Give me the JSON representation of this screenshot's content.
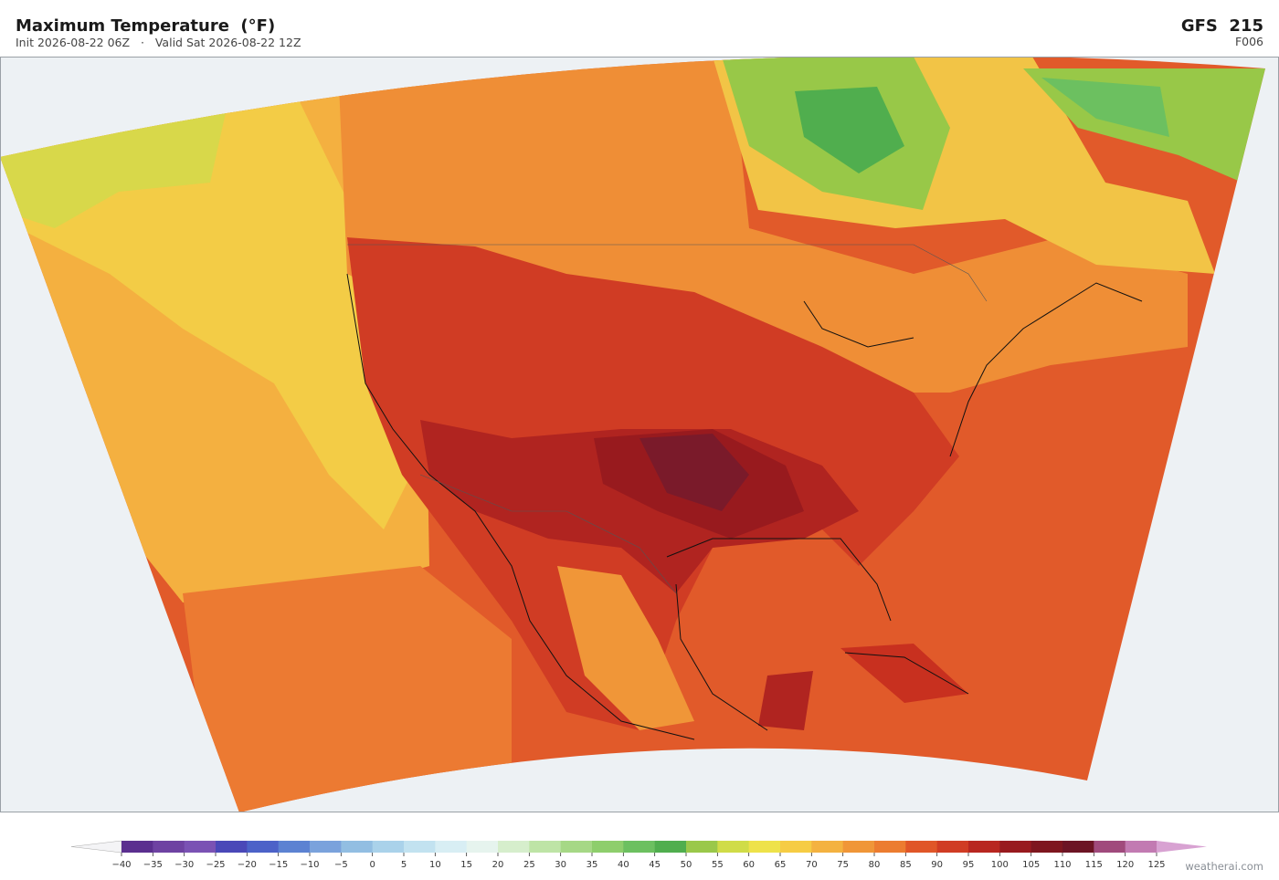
{
  "header": {
    "title": "Maximum Temperature  (°F)",
    "subtitle": "Init 2026-08-22 06Z   ·   Valid Sat 2026-08-22 12Z",
    "model": "GFS  215",
    "forecast": "F006"
  },
  "colorbar": {
    "ticks": [
      {
        "value": -40,
        "label": "−40"
      },
      {
        "value": -35,
        "label": "−35"
      },
      {
        "value": -30,
        "label": "−30"
      },
      {
        "value": -25,
        "label": "−25"
      },
      {
        "value": -20,
        "label": "−20"
      },
      {
        "value": -15,
        "label": "−15"
      },
      {
        "value": -10,
        "label": "−10"
      },
      {
        "value": -5,
        "label": "−5"
      },
      0,
      5,
      10,
      15,
      20,
      25,
      30,
      35,
      40,
      45,
      50,
      55,
      60,
      65,
      70,
      75,
      80,
      85,
      90,
      95,
      100,
      105,
      110,
      115,
      120,
      125
    ],
    "colors": [
      "#f4f4f6",
      "#5b2f8f",
      "#6e42a2",
      "#7a52b4",
      "#4a48b8",
      "#4c62c8",
      "#5c82d2",
      "#7aa2dc",
      "#92bee2",
      "#aad2ea",
      "#c2e2f0",
      "#d8eef4",
      "#e6f4ee",
      "#d6eecc",
      "#bee4a6",
      "#a6d886",
      "#8ece6c",
      "#6cc060",
      "#50ae4e",
      "#9ac84a",
      "#d0dc48",
      "#eee24a",
      "#f6cc44",
      "#f4b240",
      "#f09638",
      "#ec7c30",
      "#e05628",
      "#d03c24",
      "#b82620",
      "#981a1e",
      "#7e161e",
      "#6c1424",
      "#a04a7c",
      "#c27ab2",
      "#d8a2d2"
    ]
  },
  "footer": {
    "credit": "weatherai.com"
  }
}
